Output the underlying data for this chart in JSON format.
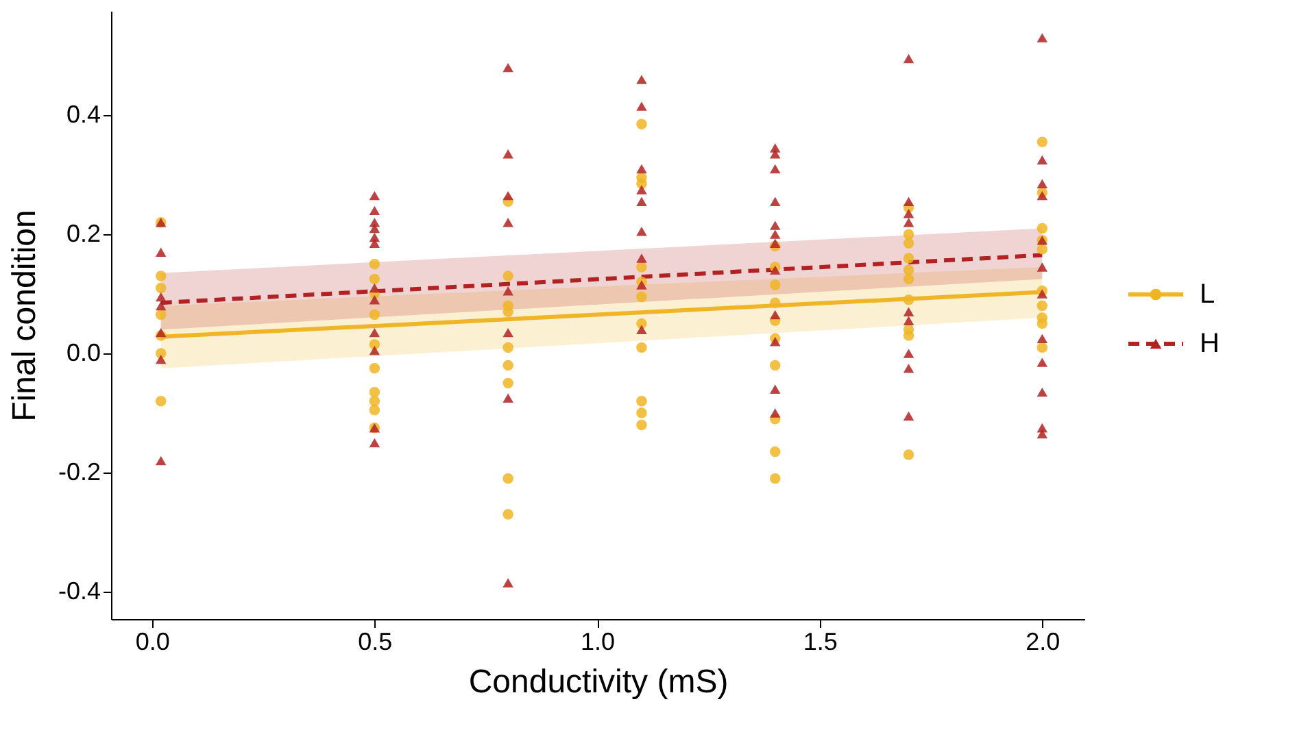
{
  "chart_data": {
    "type": "scatter",
    "xlabel": "Conductivity (mS)",
    "ylabel": "Final condition",
    "xlim": [
      -0.092,
      2.095
    ],
    "ylim": [
      -0.446,
      0.575
    ],
    "xticks": [
      {
        "value": 0,
        "label": "0.0"
      },
      0.5,
      {
        "value": 1,
        "label": "1.0"
      },
      1.5,
      {
        "value": 2,
        "label": "2.0"
      }
    ],
    "yticks": [
      -0.4,
      -0.2,
      {
        "value": 0,
        "label": "0.0"
      },
      0.2,
      0.4
    ],
    "grid": false,
    "legend": "right",
    "series": [
      {
        "name": "L",
        "color": "#efb525",
        "marker": "circle",
        "x": [
          0.02,
          0.02,
          0.02,
          0.02,
          0.02,
          0.02,
          0.02,
          0.5,
          0.5,
          0.5,
          0.5,
          0.5,
          0.5,
          0.5,
          0.5,
          0.5,
          0.5,
          0.8,
          0.8,
          0.8,
          0.8,
          0.8,
          0.8,
          0.8,
          0.8,
          0.8,
          1.1,
          1.1,
          1.1,
          1.1,
          1.1,
          1.1,
          1.1,
          1.1,
          1.1,
          1.1,
          1.1,
          1.4,
          1.4,
          1.4,
          1.4,
          1.4,
          1.4,
          1.4,
          1.4,
          1.4,
          1.4,
          1.7,
          1.7,
          1.7,
          1.7,
          1.7,
          1.7,
          1.7,
          1.7,
          1.7,
          1.7,
          2,
          2,
          2,
          2,
          2,
          2,
          2,
          2,
          2,
          2
        ],
        "values": [
          0.22,
          0.13,
          0.11,
          0.065,
          0.03,
          0,
          -0.08,
          0.15,
          0.125,
          0.1,
          0.065,
          0.015,
          -0.025,
          -0.065,
          -0.08,
          -0.095,
          -0.125,
          0.255,
          0.13,
          0.08,
          0.07,
          0.01,
          -0.02,
          -0.05,
          -0.21,
          -0.27,
          0.385,
          0.295,
          0.285,
          0.145,
          0.12,
          0.095,
          0.05,
          0.01,
          -0.08,
          -0.1,
          -0.12,
          0.18,
          0.145,
          0.115,
          0.085,
          0.055,
          0.025,
          -0.02,
          -0.11,
          -0.165,
          -0.21,
          0.245,
          0.2,
          0.185,
          0.16,
          0.14,
          0.125,
          0.09,
          0.04,
          0.03,
          -0.17,
          0.355,
          0.27,
          0.21,
          0.19,
          0.175,
          0.105,
          0.08,
          0.06,
          0.05,
          0.01
        ]
      },
      {
        "name": "H",
        "color": "#b22222",
        "marker": "triangle",
        "x": [
          0.02,
          0.02,
          0.02,
          0.02,
          0.02,
          0.02,
          0.02,
          0.5,
          0.5,
          0.5,
          0.5,
          0.5,
          0.5,
          0.5,
          0.5,
          0.5,
          0.5,
          0.5,
          0.5,
          0.8,
          0.8,
          0.8,
          0.8,
          0.8,
          0.8,
          0.8,
          0.8,
          1.1,
          1.1,
          1.1,
          1.1,
          1.1,
          1.1,
          1.1,
          1.1,
          1.1,
          1.4,
          1.4,
          1.4,
          1.4,
          1.4,
          1.4,
          1.4,
          1.4,
          1.4,
          1.4,
          1.4,
          1.4,
          1.7,
          1.7,
          1.7,
          1.7,
          1.7,
          1.7,
          1.7,
          1.7,
          1.7,
          2,
          2,
          2,
          2,
          2,
          2,
          2,
          2,
          2,
          2,
          2,
          2
        ],
        "values": [
          0.22,
          0.17,
          0.095,
          0.08,
          0.035,
          -0.01,
          -0.18,
          0.265,
          0.24,
          0.22,
          0.21,
          0.195,
          0.185,
          0.11,
          0.09,
          0.035,
          0.005,
          -0.125,
          -0.15,
          0.48,
          0.335,
          0.265,
          0.22,
          0.105,
          0.035,
          -0.075,
          -0.385,
          0.46,
          0.415,
          0.31,
          0.275,
          0.255,
          0.205,
          0.16,
          0.115,
          0.04,
          0.345,
          0.335,
          0.31,
          0.255,
          0.215,
          0.2,
          0.185,
          0.14,
          0.065,
          0.02,
          -0.06,
          -0.1,
          0.495,
          0.255,
          0.235,
          0.22,
          0.07,
          0.055,
          0,
          -0.025,
          -0.105,
          0.53,
          0.325,
          0.285,
          0.265,
          0.19,
          0.145,
          0.1,
          0.025,
          -0.015,
          -0.065,
          -0.125,
          -0.135
        ]
      },
      {
        "type": "line",
        "color": "#efb525",
        "line_style": "solid",
        "x": [
          0.02,
          2
        ],
        "values": [
          0.028,
          0.103
        ],
        "lower": [
          -0.025,
          0.06
        ],
        "upper": [
          0.08,
          0.145
        ]
      },
      {
        "type": "line",
        "color": "#b22222",
        "line_style": "dashed",
        "x": [
          0.02,
          2
        ],
        "values": [
          0.085,
          0.165
        ],
        "lower": [
          0.04,
          0.125
        ],
        "upper": [
          0.135,
          0.21
        ]
      }
    ]
  }
}
